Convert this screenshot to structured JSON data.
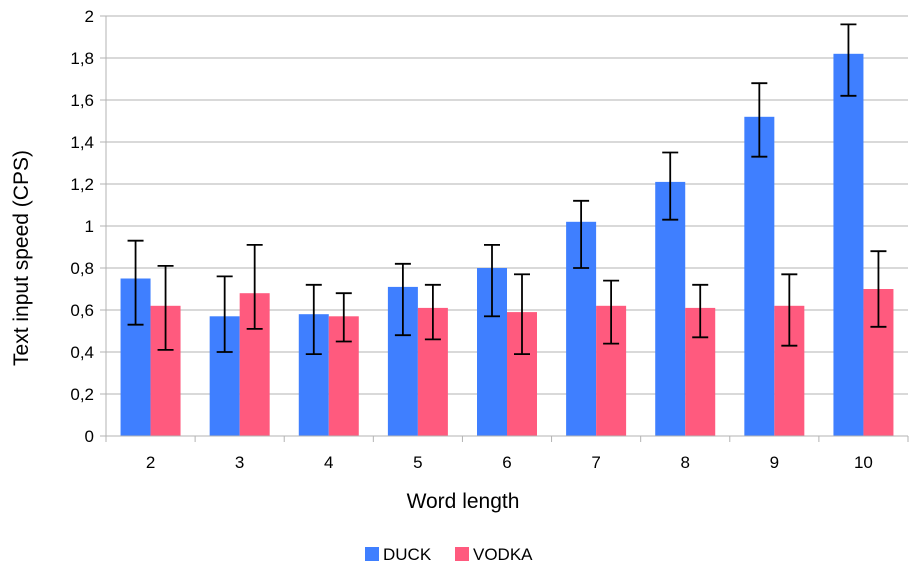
{
  "chart_data": {
    "type": "bar",
    "xlabel": "Word length",
    "ylabel": "Text input speed (CPS)",
    "categories": [
      "2",
      "3",
      "4",
      "5",
      "6",
      "7",
      "8",
      "9",
      "10"
    ],
    "ylim": [
      0,
      2
    ],
    "yticks": [
      "0",
      "0,2",
      "0,4",
      "0,6",
      "0,8",
      "1",
      "1,2",
      "1,4",
      "1,6",
      "1,8",
      "2"
    ],
    "grid": true,
    "legend_position": "bottom-center",
    "series": [
      {
        "name": "DUCK",
        "color": "#3F7FFF",
        "values": [
          0.75,
          0.57,
          0.58,
          0.71,
          0.8,
          1.02,
          1.21,
          1.52,
          1.82
        ],
        "error_low": [
          0.53,
          0.4,
          0.39,
          0.48,
          0.57,
          0.8,
          1.03,
          1.33,
          1.62
        ],
        "error_high": [
          0.93,
          0.76,
          0.72,
          0.82,
          0.91,
          1.12,
          1.35,
          1.68,
          1.96
        ]
      },
      {
        "name": "VODKA",
        "color": "#FF5A7E",
        "values": [
          0.62,
          0.68,
          0.57,
          0.61,
          0.59,
          0.62,
          0.61,
          0.62,
          0.7
        ],
        "error_low": [
          0.41,
          0.51,
          0.45,
          0.46,
          0.39,
          0.44,
          0.47,
          0.43,
          0.52
        ],
        "error_high": [
          0.81,
          0.91,
          0.68,
          0.72,
          0.77,
          0.74,
          0.72,
          0.77,
          0.88
        ]
      }
    ]
  }
}
